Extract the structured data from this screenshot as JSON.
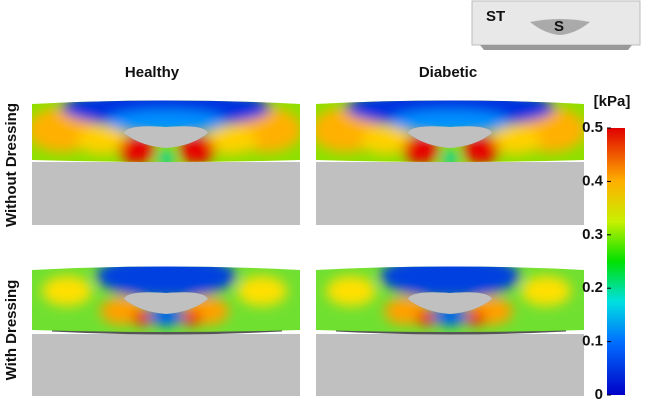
{
  "inset": {
    "tissue_label": "ST",
    "bone_label": "S"
  },
  "columns": [
    "Healthy",
    "Diabetic"
  ],
  "rows": [
    "Without Dressing",
    "With Dressing"
  ],
  "colorbar": {
    "unit": "[kPa]",
    "ticks": [
      0,
      0.1,
      0.2,
      0.3,
      0.4,
      0.5
    ]
  }
}
